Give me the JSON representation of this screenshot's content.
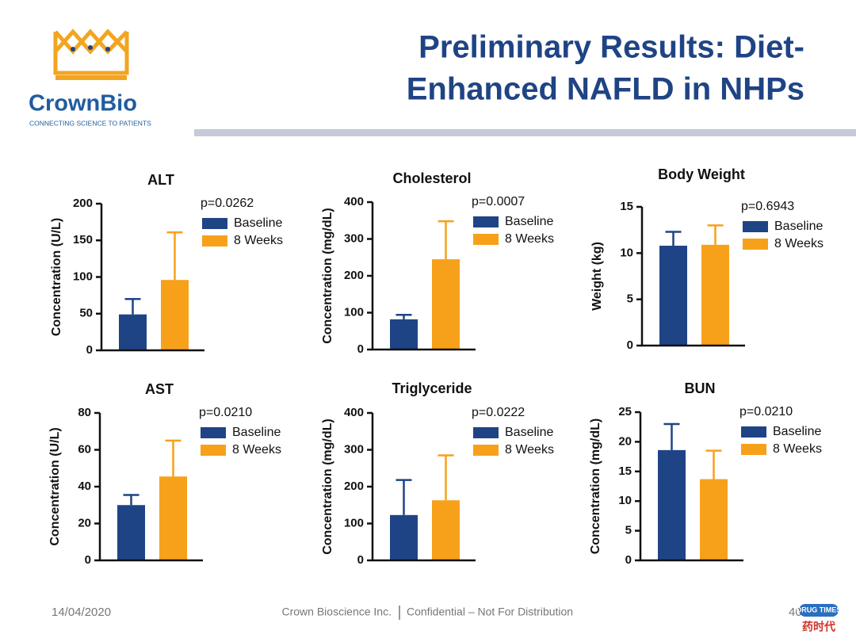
{
  "slide": {
    "logo_name": "CrownBio",
    "logo_tagline": "CONNECTING SCIENCE TO PATIENTS",
    "title_lines": [
      "Preliminary Results: Diet-",
      "Enhanced NAFLD in NHPs"
    ],
    "date": "14/04/2020",
    "company": "Crown Bioscience Inc.",
    "confidential": "Confidential – Not For Distribution",
    "page": "40",
    "watermark": [
      "DRUG TIMES",
      "药时代"
    ]
  },
  "chart_data": [
    {
      "type": "bar",
      "title": "ALT",
      "y_label": "Concentration (U/L)",
      "annotation": "p=0.0262",
      "ylim": [
        0,
        200
      ],
      "yticks": [
        0,
        50,
        100,
        150,
        200
      ],
      "series": [
        {
          "name": "Baseline",
          "color": "#1f4485",
          "values": [
            49
          ],
          "errors": [
            21
          ]
        },
        {
          "name": "8 Weeks",
          "color": "#f7a11a",
          "values": [
            96
          ],
          "errors": [
            65
          ]
        }
      ]
    },
    {
      "type": "bar",
      "title": "Cholesterol",
      "y_label": "Concentration (mg/dL)",
      "annotation": "p=0.0007",
      "ylim": [
        0,
        400
      ],
      "yticks": [
        0,
        100,
        200,
        300,
        400
      ],
      "series": [
        {
          "name": "Baseline",
          "color": "#1f4485",
          "values": [
            82
          ],
          "errors": [
            12
          ]
        },
        {
          "name": "8 Weeks",
          "color": "#f7a11a",
          "values": [
            245
          ],
          "errors": [
            103
          ]
        }
      ]
    },
    {
      "type": "bar",
      "title": "Body Weight",
      "y_label": "Weight (kg)",
      "annotation": "p=0.6943",
      "ylim": [
        0,
        15
      ],
      "yticks": [
        0,
        5,
        10,
        15
      ],
      "series": [
        {
          "name": "Baseline",
          "color": "#1f4485",
          "values": [
            10.8
          ],
          "errors": [
            1.5
          ]
        },
        {
          "name": "8 Weeks",
          "color": "#f7a11a",
          "values": [
            10.9
          ],
          "errors": [
            2.1
          ]
        }
      ]
    },
    {
      "type": "bar",
      "title": "AST",
      "y_label": "Concentration (U/L)",
      "annotation": "p=0.0210",
      "ylim": [
        0,
        80
      ],
      "yticks": [
        0,
        20,
        40,
        60,
        80
      ],
      "series": [
        {
          "name": "Baseline",
          "color": "#1f4485",
          "values": [
            30
          ],
          "errors": [
            5.5
          ]
        },
        {
          "name": "8 Weeks",
          "color": "#f7a11a",
          "values": [
            45.5
          ],
          "errors": [
            19.5
          ]
        }
      ]
    },
    {
      "type": "bar",
      "title": "Triglyceride",
      "y_label": "Concentration (mg/dL)",
      "annotation": "p=0.0222",
      "ylim": [
        0,
        400
      ],
      "yticks": [
        0,
        100,
        200,
        300,
        400
      ],
      "series": [
        {
          "name": "Baseline",
          "color": "#1f4485",
          "values": [
            123
          ],
          "errors": [
            95
          ]
        },
        {
          "name": "8 Weeks",
          "color": "#f7a11a",
          "values": [
            163
          ],
          "errors": [
            122
          ]
        }
      ]
    },
    {
      "type": "bar",
      "title": "BUN",
      "y_label": "Concentration (mg/dL)",
      "annotation": "p=0.0210",
      "ylim": [
        0,
        25
      ],
      "yticks": [
        0,
        5,
        10,
        15,
        20,
        25
      ],
      "series": [
        {
          "name": "Baseline",
          "color": "#1f4485",
          "values": [
            18.6
          ],
          "errors": [
            4.4
          ]
        },
        {
          "name": "8 Weeks",
          "color": "#f7a11a",
          "values": [
            13.7
          ],
          "errors": [
            4.8
          ]
        }
      ]
    }
  ]
}
